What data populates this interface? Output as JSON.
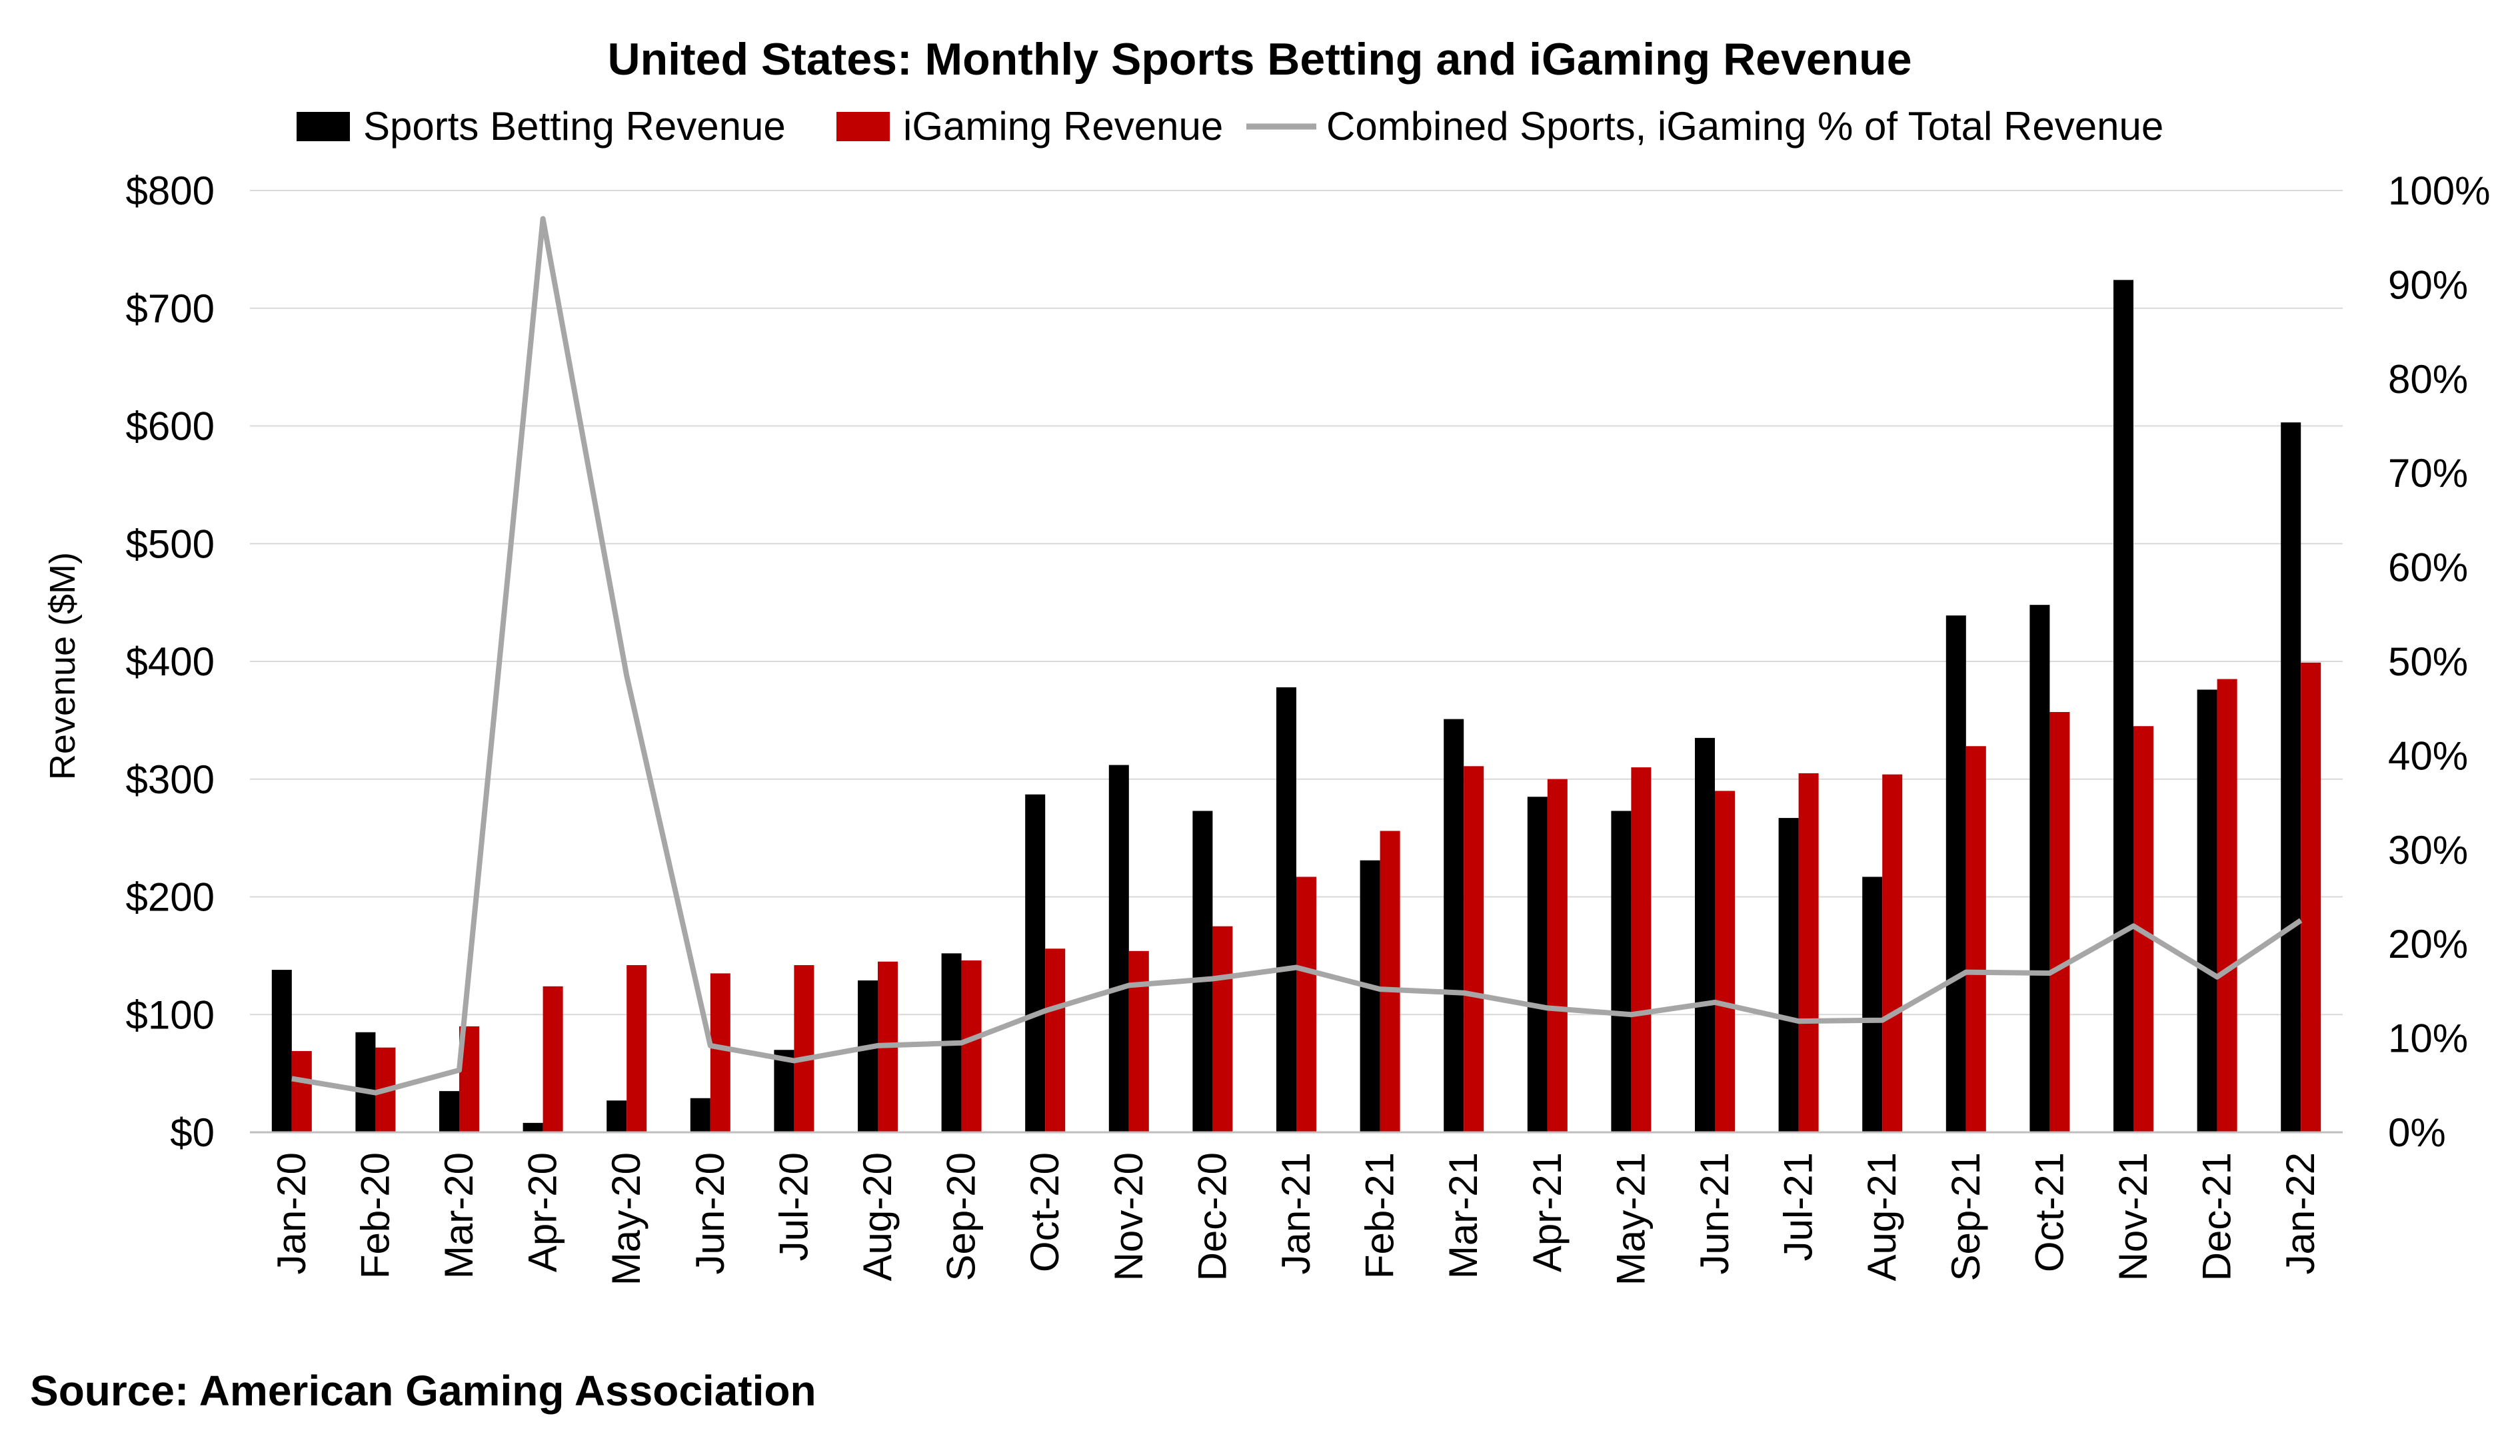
{
  "chart_data": {
    "type": "bar",
    "title": "United States: Monthly Sports Betting and iGaming Revenue",
    "ylabel": "Revenue ($M)",
    "ylim": [
      0,
      800
    ],
    "y_ticks": [
      "$0",
      "$100",
      "$200",
      "$300",
      "$400",
      "$500",
      "$600",
      "$700",
      "$800"
    ],
    "y2lim": [
      0,
      100
    ],
    "y2_ticks": [
      "0%",
      "10%",
      "20%",
      "30%",
      "40%",
      "50%",
      "60%",
      "70%",
      "80%",
      "90%",
      "100%"
    ],
    "categories": [
      "Jan-20",
      "Feb-20",
      "Mar-20",
      "Apr-20",
      "May-20",
      "Jun-20",
      "Jul-20",
      "Aug-20",
      "Sep-20",
      "Oct-20",
      "Nov-20",
      "Dec-20",
      "Jan-21",
      "Feb-21",
      "Mar-21",
      "Apr-21",
      "May-21",
      "Jun-21",
      "Jul-21",
      "Aug-21",
      "Sep-21",
      "Oct-21",
      "Nov-21",
      "Dec-21",
      "Jan-22"
    ],
    "series": [
      {
        "name": "Sports Betting Revenue",
        "type": "bar",
        "axis": "left",
        "color": "#000000",
        "values": [
          138,
          85,
          35,
          8,
          27,
          29,
          70,
          129,
          152,
          287,
          312,
          273,
          378,
          231,
          351,
          285,
          273,
          335,
          267,
          217,
          439,
          448,
          724,
          376,
          603
        ]
      },
      {
        "name": "iGaming Revenue",
        "type": "bar",
        "axis": "left",
        "color": "#c00000",
        "values": [
          69,
          72,
          90,
          124,
          142,
          135,
          142,
          145,
          146,
          156,
          154,
          175,
          217,
          256,
          311,
          300,
          310,
          290,
          305,
          304,
          328,
          357,
          345,
          385,
          399
        ]
      },
      {
        "name": "Combined Sports, iGaming % of Total Revenue",
        "type": "line",
        "axis": "right",
        "color": "#a6a6a6",
        "values": [
          5.7,
          4.2,
          6.6,
          97.0,
          48.5,
          9.2,
          7.6,
          9.2,
          9.5,
          12.9,
          15.6,
          16.3,
          17.5,
          15.2,
          14.8,
          13.2,
          12.5,
          13.8,
          11.8,
          11.9,
          17.0,
          16.9,
          21.9,
          16.5,
          22.5
        ]
      }
    ],
    "legend": "top",
    "grid": true,
    "source": "Source: American Gaming Association"
  }
}
